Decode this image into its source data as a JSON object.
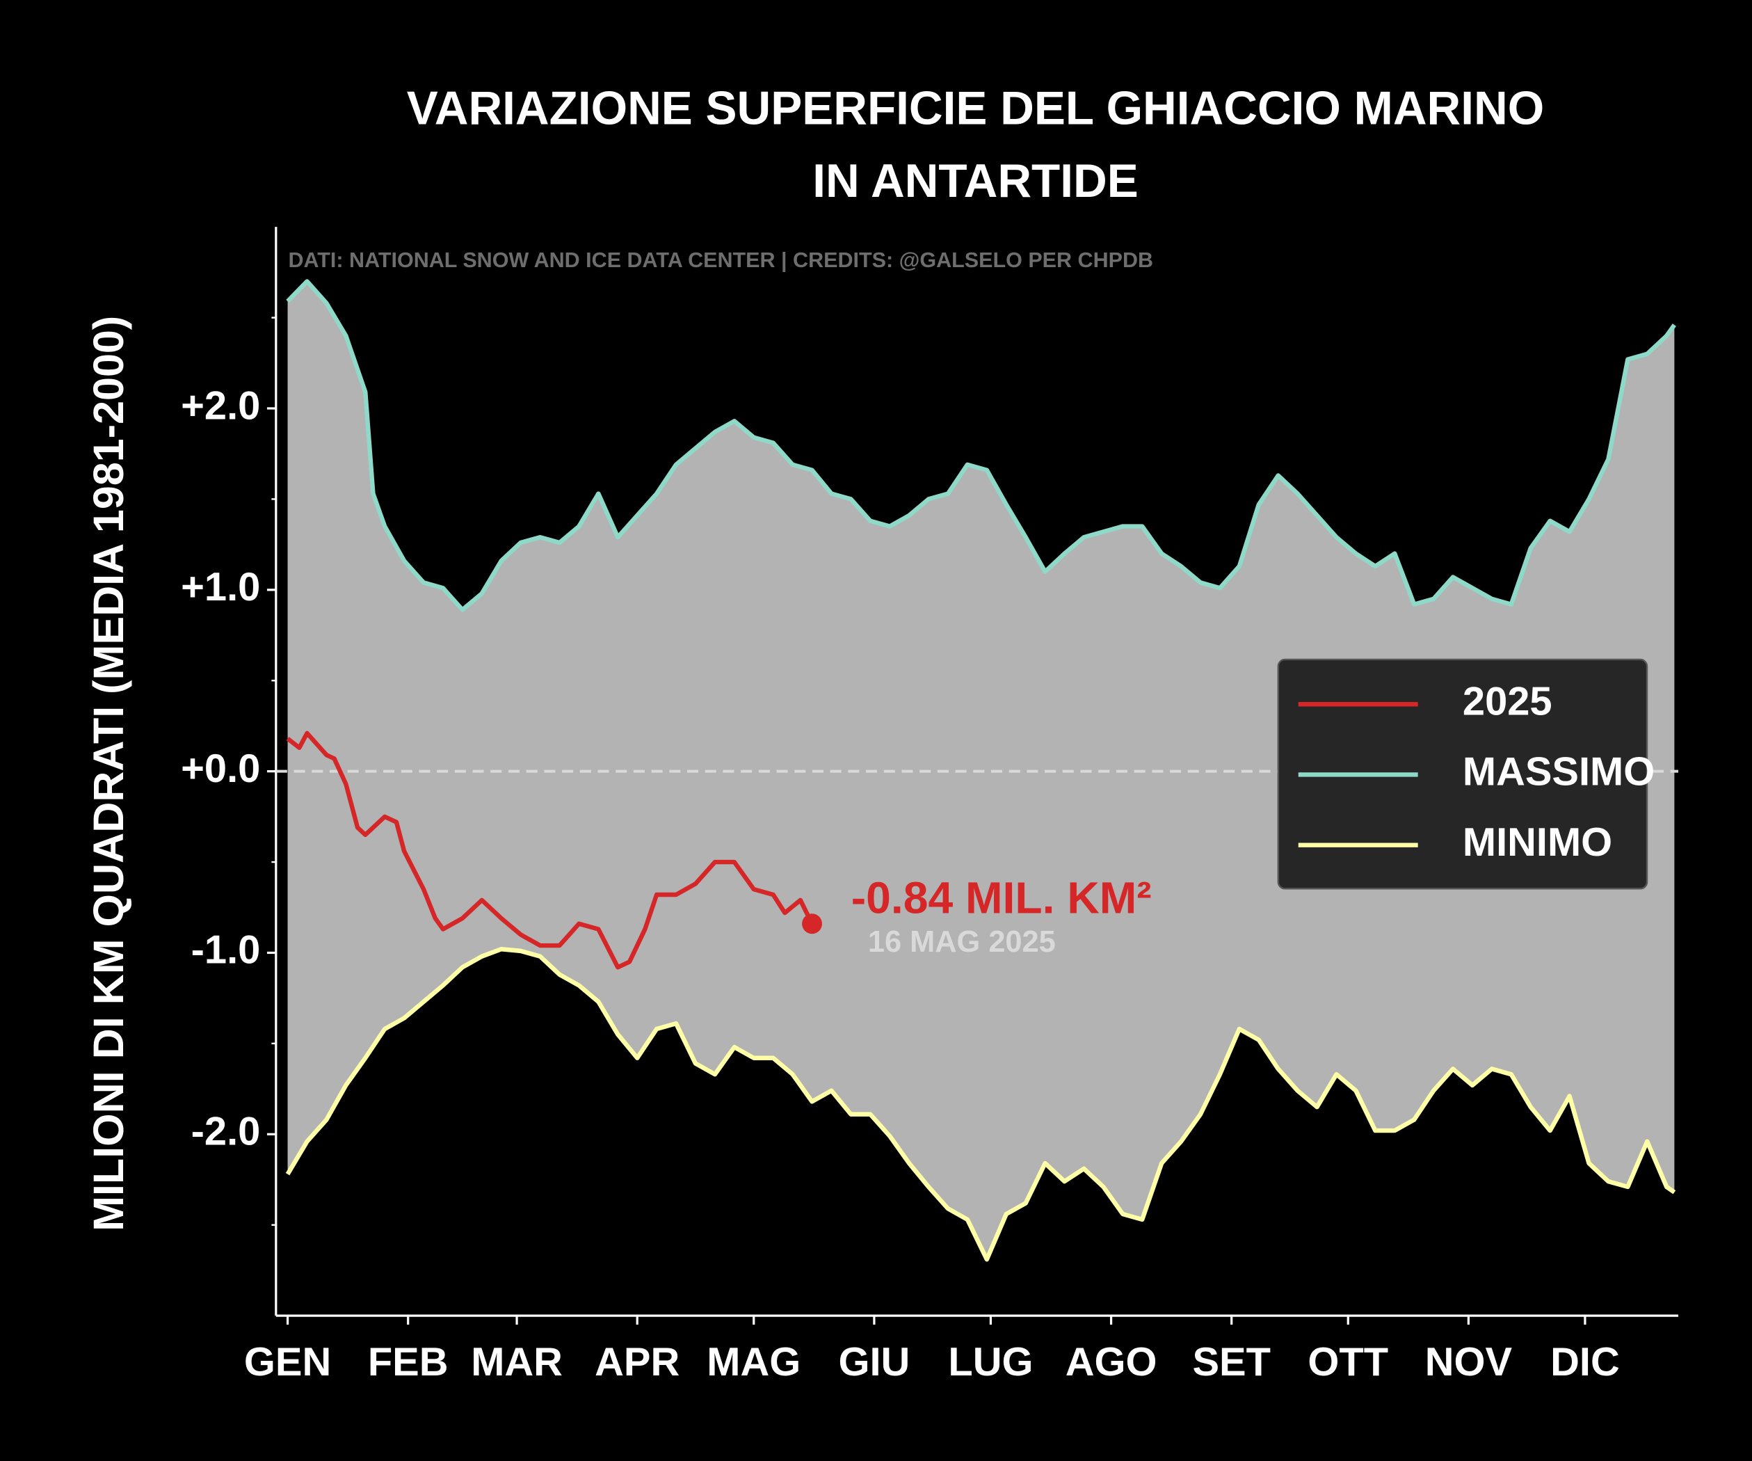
{
  "chart_data": {
    "type": "line",
    "title": [
      "VARIAZIONE SUPERFICIE DEL GHIACCIO MARINO",
      "IN ANTARTIDE"
    ],
    "subtitle": "DATI: NATIONAL SNOW AND ICE DATA CENTER | CREDITS: @GALSELO PER CHPDB",
    "y_label": "MILIONI DI KM QUADRATI (MEDIA 1981-2000)",
    "xlim": [
      -3,
      358
    ],
    "xticks": [
      {
        "value": 0,
        "label": "GEN"
      },
      {
        "value": 31,
        "label": "FEB"
      },
      {
        "value": 59,
        "label": "MAR"
      },
      {
        "value": 90,
        "label": "APR"
      },
      {
        "value": 120,
        "label": "MAG"
      },
      {
        "value": 151,
        "label": "GIU"
      },
      {
        "value": 181,
        "label": "LUG"
      },
      {
        "value": 212,
        "label": "AGO"
      },
      {
        "value": 243,
        "label": "SET"
      },
      {
        "value": 273,
        "label": "OTT"
      },
      {
        "value": 304,
        "label": "NOV"
      },
      {
        "value": 334,
        "label": "DIC"
      }
    ],
    "ylim": [
      -3,
      3
    ],
    "yticks": [
      {
        "value": 2,
        "label": "+2.0"
      },
      {
        "value": 1,
        "label": "+1.0"
      },
      {
        "value": 0,
        "label": "+0.0"
      },
      {
        "value": -1,
        "label": "-1.0"
      },
      {
        "value": -2,
        "label": "-2.0"
      }
    ],
    "yminorticks": [
      -2.5,
      -1.5,
      -0.5,
      0.5,
      1.5,
      2.5
    ],
    "reference_line": {
      "value": 0,
      "style": "dashed",
      "color": "#d9d9d9"
    },
    "fill_between": {
      "series": [
        1,
        2
      ],
      "color": "#b3b3b3"
    },
    "legend": "center right",
    "series": [
      {
        "name": "2025",
        "color": "#d62728",
        "x": [
          0,
          3,
          5,
          10,
          12,
          15,
          18,
          20,
          25,
          28,
          30,
          35,
          38,
          40,
          45,
          50,
          55,
          60,
          65,
          70,
          75,
          80,
          85,
          88,
          92,
          95,
          100,
          105,
          110,
          115,
          120,
          125,
          128,
          132,
          135
        ],
        "values": [
          0.18,
          0.13,
          0.21,
          0.09,
          0.07,
          -0.07,
          -0.31,
          -0.35,
          -0.25,
          -0.28,
          -0.44,
          -0.65,
          -0.81,
          -0.87,
          -0.81,
          -0.71,
          -0.81,
          -0.9,
          -0.96,
          -0.96,
          -0.84,
          -0.87,
          -1.08,
          -1.05,
          -0.87,
          -0.68,
          -0.68,
          -0.62,
          -0.5,
          -0.5,
          -0.65,
          -0.68,
          -0.78,
          -0.71,
          -0.84
        ]
      },
      {
        "name": "MASSIMO",
        "color": "#8fd9c8",
        "x": [
          0,
          5,
          10,
          15,
          20,
          22,
          25,
          30,
          35,
          40,
          45,
          50,
          55,
          60,
          65,
          70,
          75,
          80,
          85,
          90,
          95,
          100,
          105,
          110,
          115,
          120,
          125,
          130,
          135,
          140,
          145,
          150,
          155,
          160,
          165,
          170,
          175,
          180,
          185,
          190,
          195,
          200,
          205,
          210,
          215,
          220,
          225,
          230,
          235,
          240,
          245,
          250,
          255,
          260,
          265,
          270,
          275,
          280,
          285,
          290,
          295,
          300,
          305,
          310,
          315,
          320,
          325,
          330,
          335,
          340,
          345,
          350,
          355,
          357
        ],
        "values": [
          2.59,
          2.7,
          2.58,
          2.4,
          2.09,
          1.53,
          1.35,
          1.16,
          1.04,
          1.01,
          0.89,
          0.98,
          1.16,
          1.26,
          1.29,
          1.26,
          1.35,
          1.53,
          1.29,
          1.41,
          1.53,
          1.69,
          1.78,
          1.87,
          1.93,
          1.84,
          1.81,
          1.69,
          1.66,
          1.53,
          1.5,
          1.38,
          1.35,
          1.41,
          1.5,
          1.53,
          1.69,
          1.66,
          1.47,
          1.29,
          1.1,
          1.2,
          1.29,
          1.32,
          1.35,
          1.35,
          1.2,
          1.13,
          1.04,
          1.01,
          1.13,
          1.47,
          1.63,
          1.53,
          1.41,
          1.29,
          1.2,
          1.13,
          1.2,
          0.92,
          0.95,
          1.07,
          1.01,
          0.95,
          0.92,
          1.23,
          1.38,
          1.32,
          1.5,
          1.72,
          2.27,
          2.3,
          2.4,
          2.46
        ]
      },
      {
        "name": "MINIMO",
        "color": "#ffffa8",
        "x": [
          0,
          5,
          10,
          15,
          20,
          25,
          30,
          35,
          40,
          45,
          50,
          55,
          60,
          65,
          70,
          75,
          80,
          85,
          90,
          95,
          100,
          105,
          110,
          115,
          120,
          125,
          130,
          135,
          140,
          145,
          150,
          155,
          160,
          165,
          170,
          175,
          180,
          185,
          190,
          195,
          200,
          205,
          210,
          215,
          220,
          225,
          230,
          235,
          240,
          245,
          250,
          255,
          260,
          265,
          270,
          275,
          280,
          285,
          290,
          295,
          300,
          305,
          310,
          315,
          320,
          325,
          330,
          335,
          340,
          345,
          350,
          355,
          357
        ],
        "values": [
          -2.22,
          -2.04,
          -1.92,
          -1.73,
          -1.58,
          -1.42,
          -1.36,
          -1.27,
          -1.18,
          -1.08,
          -1.02,
          -0.98,
          -0.99,
          -1.02,
          -1.12,
          -1.18,
          -1.27,
          -1.45,
          -1.58,
          -1.42,
          -1.39,
          -1.61,
          -1.67,
          -1.52,
          -1.58,
          -1.58,
          -1.67,
          -1.82,
          -1.76,
          -1.89,
          -1.89,
          -2.01,
          -2.16,
          -2.29,
          -2.41,
          -2.47,
          -2.69,
          -2.44,
          -2.38,
          -2.16,
          -2.26,
          -2.19,
          -2.29,
          -2.44,
          -2.47,
          -2.16,
          -2.04,
          -1.89,
          -1.67,
          -1.42,
          -1.48,
          -1.64,
          -1.76,
          -1.85,
          -1.67,
          -1.76,
          -1.98,
          -1.98,
          -1.92,
          -1.76,
          -1.64,
          -1.73,
          -1.64,
          -1.67,
          -1.85,
          -1.98,
          -1.79,
          -2.16,
          -2.26,
          -2.29,
          -2.04,
          -2.29,
          -2.32
        ]
      }
    ],
    "annotation": {
      "text": "-0.84 MIL. KM²",
      "date": "16 MAG 2025",
      "color": "#d62728"
    }
  }
}
